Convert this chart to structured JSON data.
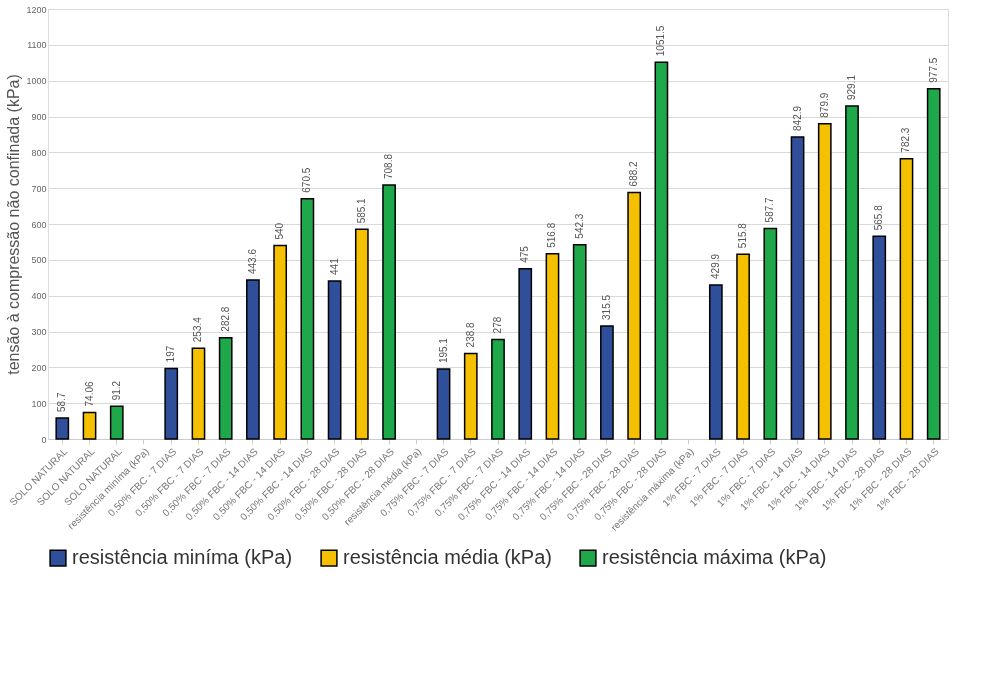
{
  "chart_data": {
    "type": "bar",
    "ylabel": "tensão à compressão não confinada (kPa)",
    "categories": [
      "SOLO NATURAL",
      "SOLO NATURAL",
      "SOLO NATURAL",
      "resistência miníma (kPa)",
      "0,50% FBC - 7 DIAS",
      "0,50% FBC - 7 DIAS",
      "0,50% FBC - 7 DIAS",
      "0,50% FBC - 14 DIAS",
      "0,50% FBC - 14 DIAS",
      "0,50% FBC - 14 DIAS",
      "0,50% FBC - 28 DIAS",
      "0,50% FBC - 28 DIAS",
      "0,50% FBC - 28 DIAS",
      "resistência média (kPa)",
      "0,75% FBC - 7 DIAS",
      "0,75% FBC - 7 DIAS",
      "0,75% FBC - 7 DIAS",
      "0,75% FBC - 14 DIAS",
      "0,75% FBC - 14 DIAS",
      "0,75% FBC - 14 DIAS",
      "0,75% FBC - 28 DIAS",
      "0,75% FBC - 28 DIAS",
      "0,75% FBC - 28 DIAS",
      "resistência máxima (kPa)",
      "1% FBC - 7 DIAS",
      "1% FBC - 7 DIAS",
      "1% FBC - 7 DIAS",
      "1% FBC - 14 DIAS",
      "1% FBC - 14 DIAS",
      "1% FBC - 14 DIAS",
      "1% FBC - 28 DIAS",
      "1% FBC - 28 DIAS",
      "1% FBC - 28 DIAS"
    ],
    "series": [
      {
        "name": "resistência miníma (kPa)",
        "color": "#2f4f9a",
        "values": [
          58.7,
          null,
          null,
          null,
          197,
          null,
          null,
          443.6,
          null,
          null,
          441,
          null,
          null,
          null,
          195.1,
          null,
          null,
          475,
          null,
          null,
          315.5,
          null,
          null,
          null,
          429.9,
          null,
          null,
          842.9,
          null,
          null,
          565.8,
          null,
          null
        ]
      },
      {
        "name": "resistência média (kPa)",
        "color": "#f5c000",
        "values": [
          null,
          74.06,
          null,
          null,
          null,
          253.4,
          null,
          null,
          540,
          null,
          null,
          585.1,
          null,
          null,
          null,
          238.8,
          null,
          null,
          516.8,
          null,
          null,
          688.2,
          null,
          null,
          null,
          515.8,
          null,
          null,
          879.9,
          null,
          null,
          782.3,
          null
        ]
      },
      {
        "name": "resistência máxima (kPa)",
        "color": "#1ea84a",
        "values": [
          null,
          null,
          91.2,
          null,
          null,
          null,
          282.8,
          null,
          null,
          670.5,
          null,
          null,
          708.8,
          null,
          null,
          null,
          278,
          null,
          null,
          542.3,
          null,
          null,
          1051.5,
          null,
          null,
          null,
          587.7,
          null,
          null,
          929.1,
          null,
          null,
          977.5
        ]
      }
    ],
    "ylim": [
      0,
      1200
    ],
    "yticks": [
      0,
      100,
      200,
      300,
      400,
      500,
      600,
      700,
      800,
      900,
      1000,
      1100,
      1200
    ],
    "grid": "y",
    "legend": "bottom",
    "data_labels": true
  }
}
